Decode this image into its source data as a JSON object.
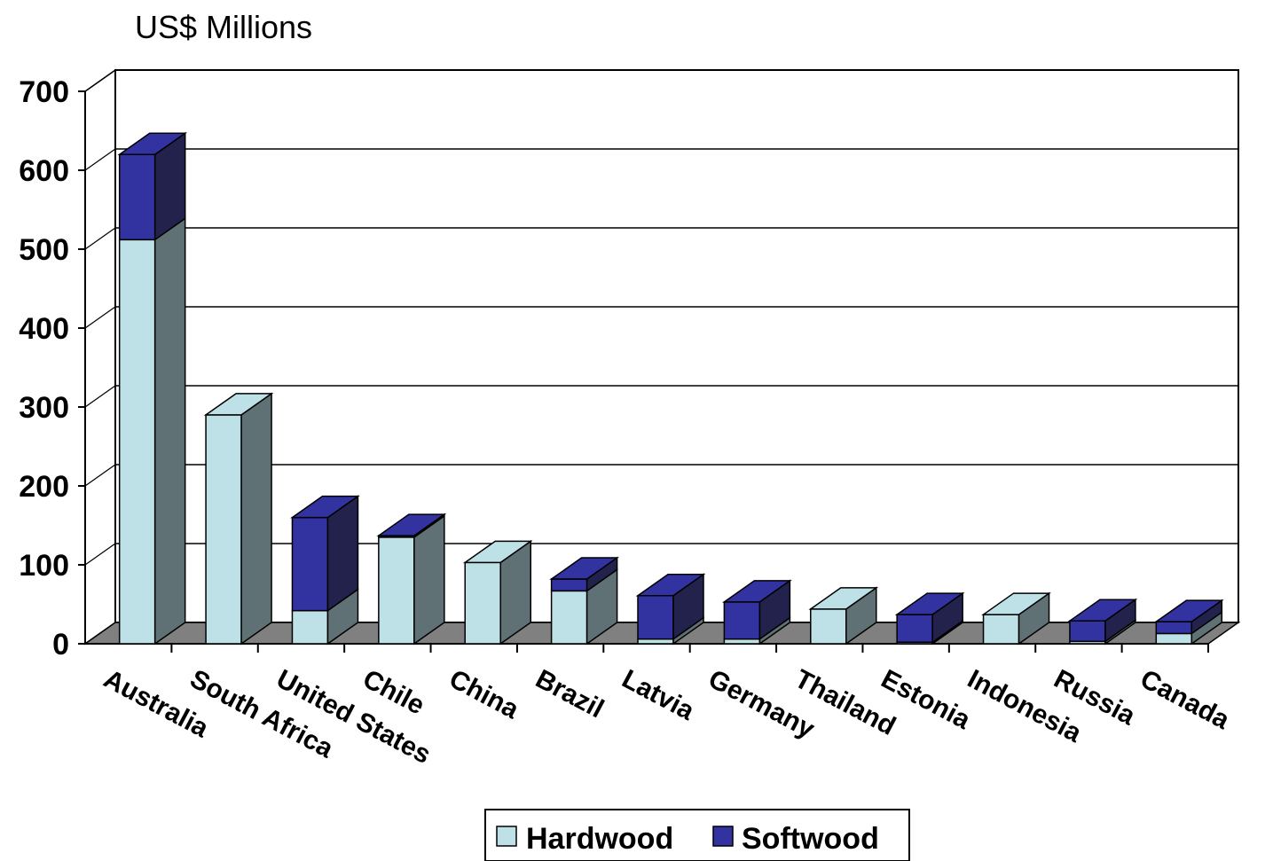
{
  "chart_data": {
    "type": "bar",
    "stacked": true,
    "three_d": true,
    "unit_label": "US$ Millions",
    "categories": [
      "Australia",
      "South Africa",
      "United States",
      "Chile",
      "China",
      "Brazil",
      "Latvia",
      "Germany",
      "Thailand",
      "Estonia",
      "Indonesia",
      "Russia",
      "Canada"
    ],
    "series": [
      {
        "name": "Hardwood",
        "color": "#bde1e6",
        "values": [
          512,
          290,
          42,
          135,
          103,
          67,
          6,
          6,
          44,
          2,
          37,
          3,
          13
        ]
      },
      {
        "name": "Softwood",
        "color": "#3232a0",
        "values": [
          108,
          0,
          118,
          2,
          0,
          15,
          55,
          47,
          0,
          35,
          0,
          26,
          15
        ]
      }
    ],
    "yticks": [
      "0",
      "100",
      "200",
      "300",
      "400",
      "500",
      "600",
      "700"
    ],
    "ylim": [
      0,
      700
    ],
    "grid": true,
    "legend": {
      "position": "bottom",
      "entries": [
        "Hardwood",
        "Softwood"
      ]
    },
    "colors": {
      "floor": "#808080",
      "hardwood_side": "#5f7174",
      "softwood_side": "#22224c"
    }
  }
}
